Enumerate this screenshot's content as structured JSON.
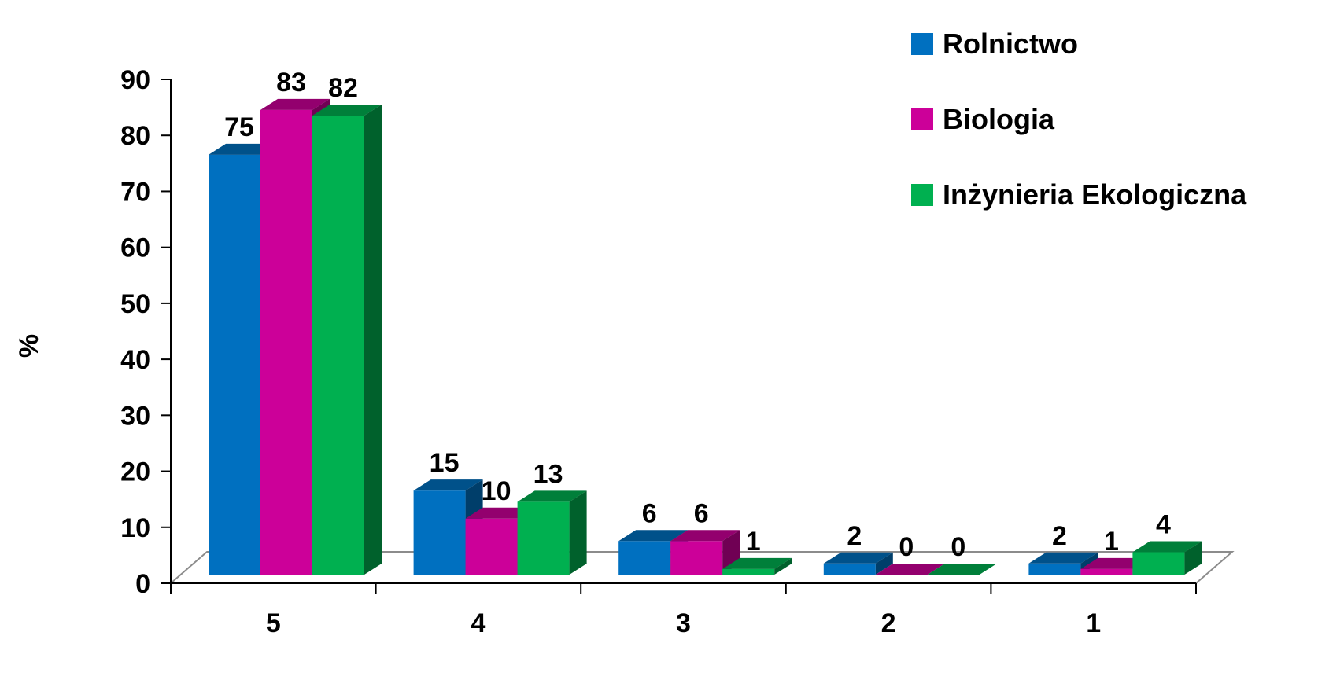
{
  "chart_data": {
    "type": "bar",
    "title": "",
    "xlabel": "",
    "ylabel": "%",
    "ylim": [
      0,
      90
    ],
    "yticks": [
      "0",
      "10",
      "20",
      "30",
      "40",
      "50",
      "60",
      "70",
      "80",
      "90"
    ],
    "categories": [
      "5",
      "4",
      "3",
      "2",
      "1"
    ],
    "series": [
      {
        "name": "Rolnictwo",
        "color": "#0070C0",
        "values": [
          75,
          15,
          6,
          2,
          2
        ]
      },
      {
        "name": "Biologia",
        "color": "#CC0099",
        "values": [
          83,
          10,
          6,
          0,
          1
        ]
      },
      {
        "name": "Inżynieria Ekologiczna",
        "color": "#00B050",
        "values": [
          82,
          13,
          1,
          0,
          4
        ]
      }
    ],
    "legend_position": "top-right",
    "grid": false,
    "style": "3d-clustered"
  }
}
